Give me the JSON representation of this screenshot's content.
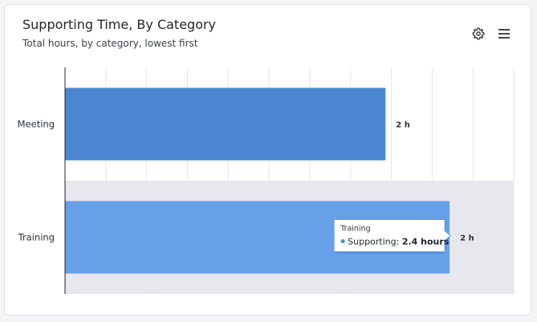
{
  "header": {
    "title": "Supporting Time, By Category",
    "subtitle": "Total hours, by category, lowest first"
  },
  "toolbar": {
    "settings_icon": "gear-icon",
    "menu_icon": "hamburger-menu-icon"
  },
  "colors": {
    "meeting_bar": "#4b87d3",
    "training_bar": "#65a0e8",
    "hover_band": "#e9e7ee",
    "grid": "#e6e6ea",
    "axis": "#1f2329"
  },
  "chart_data": {
    "type": "bar",
    "orientation": "horizontal",
    "title": "Supporting Time, By Category",
    "subtitle": "Total hours, by category, lowest first",
    "categories": [
      "Meeting",
      "Training"
    ],
    "series": [
      {
        "name": "Supporting",
        "values": [
          2.0,
          2.4
        ]
      }
    ],
    "data_labels": [
      "2 h",
      "2 h"
    ],
    "xlim": [
      0,
      2.8
    ],
    "grid": true,
    "highlighted_category": "Training",
    "tooltip": {
      "category": "Training",
      "series": "Supporting",
      "value_text": "2.4 hours"
    }
  }
}
